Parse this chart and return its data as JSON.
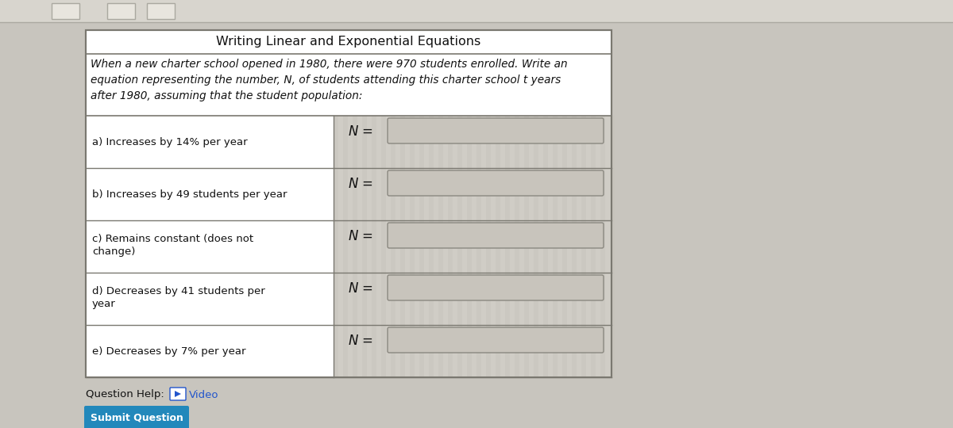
{
  "title": "Writing Linear and Exponential Equations",
  "intro_text": "When a new charter school opened in 1980, there were 970 students enrolled. Write an\nequation representing the number, N, of students attending this charter school t years\nafter 1980, assuming that the student population:",
  "rows": [
    {
      "label": "a) Increases by 14% per year",
      "label2": null
    },
    {
      "label": "b) Increases by 49 students per year",
      "label2": null
    },
    {
      "label": "c) Remains constant (does not",
      "label2": "change)"
    },
    {
      "label": "d) Decreases by 41 students per",
      "label2": "year"
    },
    {
      "label": "e) Decreases by 7% per year",
      "label2": null
    }
  ],
  "bg_color": "#c8c5be",
  "table_outer_bg": "#dbd8d0",
  "left_cell_bg": "#ffffff",
  "right_cell_bg": "#d0cdc6",
  "input_bg": "#c8c4bc",
  "input_border": "#8a8880",
  "border_color": "#7a7870",
  "title_bg": "#ffffff",
  "intro_bg": "#ffffff",
  "question_help_color": "#2255cc",
  "submit_bg": "#2288bb",
  "submit_text_color": "#ffffff",
  "top_bar_color": "#d8d5ce",
  "nav_btn_color": "#e8e5de"
}
